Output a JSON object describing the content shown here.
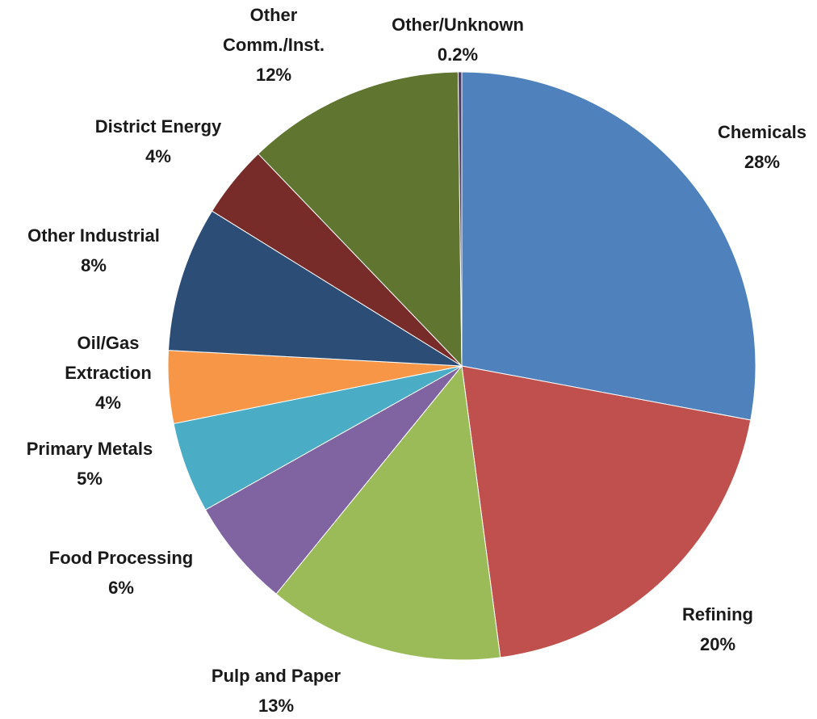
{
  "chart_data": {
    "type": "pie",
    "title": "",
    "slices": [
      {
        "label": [
          "Chemicals"
        ],
        "value": 28,
        "value_label": "28%",
        "color": "#4f81bd"
      },
      {
        "label": [
          "Refining"
        ],
        "value": 20,
        "value_label": "20%",
        "color": "#c0504d"
      },
      {
        "label": [
          "Pulp and Paper"
        ],
        "value": 13,
        "value_label": "13%",
        "color": "#9bbb59"
      },
      {
        "label": [
          "Food Processing"
        ],
        "value": 6,
        "value_label": "6%",
        "color": "#8064a2"
      },
      {
        "label": [
          "Primary Metals"
        ],
        "value": 5,
        "value_label": "5%",
        "color": "#4bacc6"
      },
      {
        "label": [
          "Oil/Gas",
          "Extraction"
        ],
        "value": 4,
        "value_label": "4%",
        "color": "#f79646"
      },
      {
        "label": [
          "Other Industrial"
        ],
        "value": 8,
        "value_label": "8%",
        "color": "#2c4d75"
      },
      {
        "label": [
          "District Energy"
        ],
        "value": 4,
        "value_label": "4%",
        "color": "#772c2a"
      },
      {
        "label": [
          "Other",
          "Comm./Inst."
        ],
        "value": 12,
        "value_label": "12%",
        "color": "#5f7530"
      },
      {
        "label": [
          "Other/Unknown"
        ],
        "value": 0.2,
        "value_label": "0.2%",
        "color": "#4d3b62"
      }
    ]
  }
}
